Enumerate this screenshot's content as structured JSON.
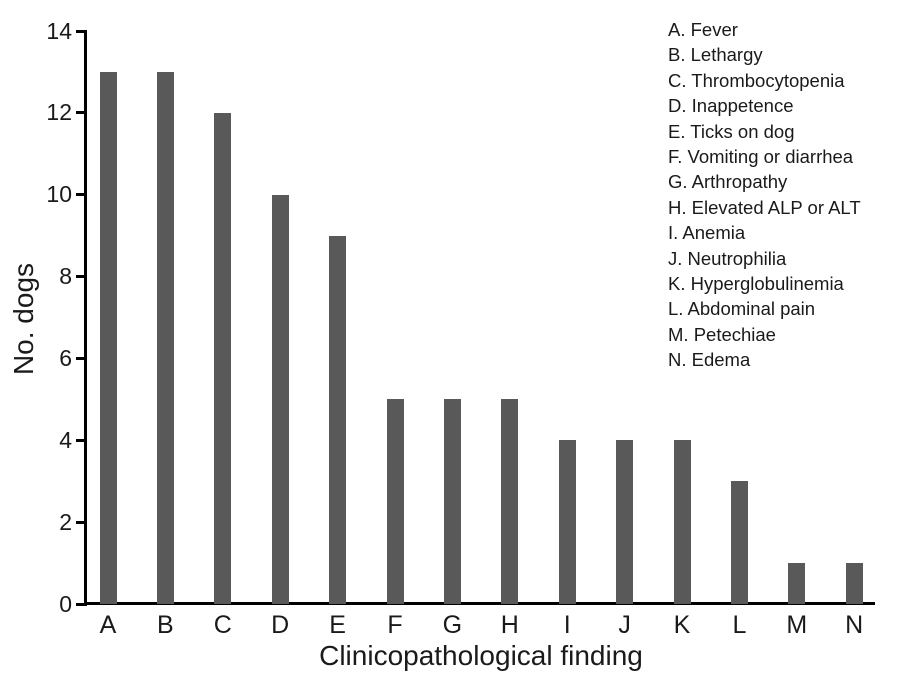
{
  "chart_data": {
    "type": "bar",
    "title": "",
    "xlabel": "Clinicopathological finding",
    "ylabel": "No. dogs",
    "categories": [
      "A",
      "B",
      "C",
      "D",
      "E",
      "F",
      "G",
      "H",
      "I",
      "J",
      "K",
      "L",
      "M",
      "N"
    ],
    "values": [
      13,
      13,
      12,
      10,
      9,
      5,
      5,
      5,
      4,
      4,
      4,
      3,
      1,
      1
    ],
    "ylim": [
      0,
      14
    ],
    "yticks": [
      0,
      2,
      4,
      6,
      8,
      10,
      12,
      14
    ],
    "grid": false,
    "legend_position": "top-right",
    "legend": [
      "A. Fever",
      "B. Lethargy",
      "C. Thrombocytopenia",
      "D. Inappetence",
      "E. Ticks on dog",
      "F. Vomiting or diarrhea",
      "G. Arthropathy",
      "H. Elevated ALP or ALT",
      "I. Anemia",
      "J. Neutrophilia",
      "K. Hyperglobulinemia",
      "L. Abdominal pain",
      "M. Petechiae",
      "N. Edema"
    ],
    "colors": {
      "bar": "#595959",
      "axis": "#000000",
      "text": "#1a1a1a",
      "background": "#ffffff"
    }
  }
}
